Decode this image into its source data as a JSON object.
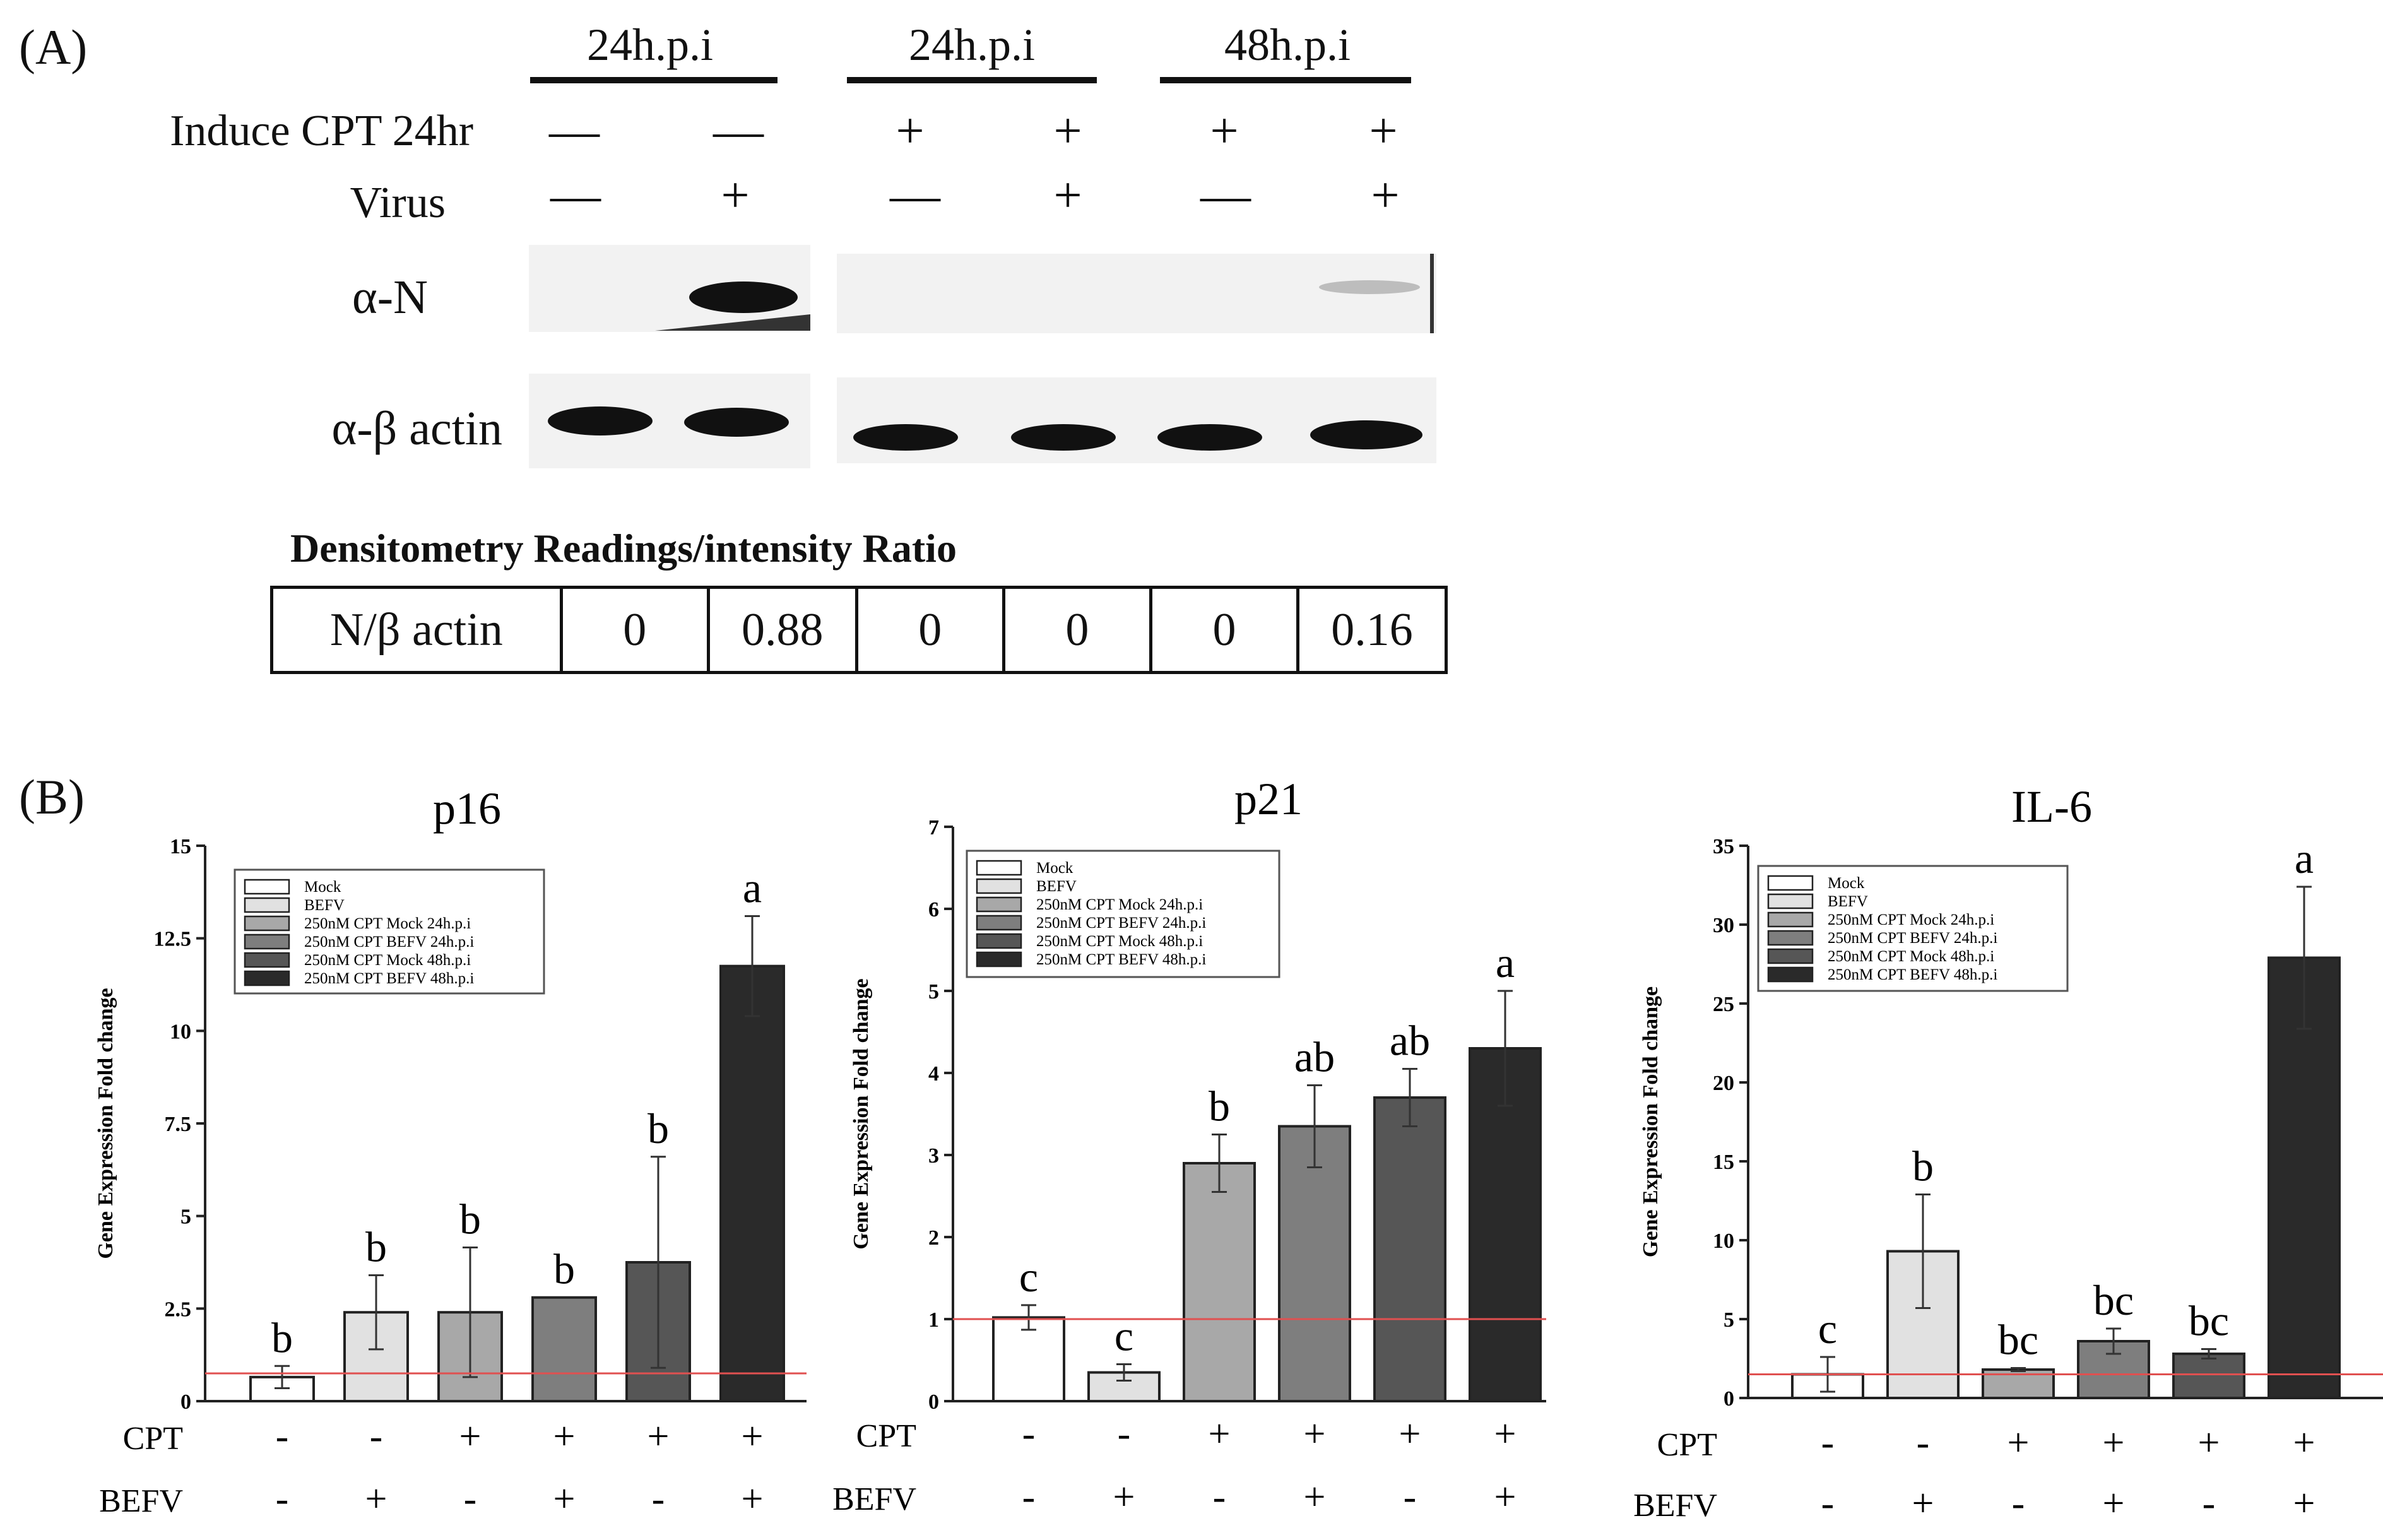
{
  "panelA": {
    "label": "(A)",
    "time_headers": [
      "24h.p.i",
      "24h.p.i",
      "48h.p.i"
    ],
    "row_labels": {
      "cpt": "Induce CPT 24hr",
      "virus": "Virus",
      "alphaN": "α-N",
      "actin": "α-β actin"
    },
    "cpt_symbols": [
      "—",
      "—",
      "+",
      "+",
      "+",
      "+"
    ],
    "virus_symbols": [
      "—",
      "+",
      "—",
      "+",
      "—",
      "+"
    ],
    "densitometry_title": "Densitometry Readings/intensity Ratio",
    "densitometry_row_label": "N/β actin",
    "densitometry_values": [
      "0",
      "0.88",
      "0",
      "0",
      "0",
      "0.16"
    ]
  },
  "panelB": {
    "label": "(B)",
    "legend": [
      "Mock",
      "BEFV",
      "250nM CPT Mock  24h.p.i",
      "250nM CPT BEFV 24h.p.i",
      "250nM CPT Mock  48h.p.i",
      "250nM CPT BEFV 48h.p.i"
    ],
    "bar_colors": [
      "#ffffff",
      "#e1e1e1",
      "#a8a8a8",
      "#7e7e7e",
      "#565656",
      "#2a2a2a"
    ],
    "ref_line_color": "#e05050",
    "ylabel": "Gene Expression Fold change",
    "cpt_label": "CPT",
    "befv_label": "BEFV",
    "cpt_row": [
      "-",
      "-",
      "+",
      "+",
      "+",
      "+"
    ],
    "befv_row": [
      "-",
      "+",
      "-",
      "+",
      "-",
      "+"
    ]
  },
  "chart_data": [
    {
      "type": "bar",
      "title": "p16",
      "ylim": [
        0,
        15
      ],
      "yticks": [
        0,
        2.5,
        5,
        7.5,
        10,
        12.5,
        15
      ],
      "ytick_labels": [
        "0",
        "2.5",
        "5",
        "7.5",
        "10",
        "12.5",
        "15"
      ],
      "categories": [
        "Mock",
        "BEFV",
        "250nM CPT Mock 24h.p.i",
        "250nM CPT BEFV 24h.p.i",
        "250nM CPT Mock 48h.p.i",
        "250nM CPT BEFV 48h.p.i"
      ],
      "values": [
        0.65,
        2.4,
        2.4,
        2.8,
        3.75,
        11.75
      ],
      "errors": [
        0.3,
        1.0,
        1.75,
        0,
        2.85,
        1.35
      ],
      "sig_labels": [
        "b",
        "b",
        "b",
        "b",
        "b",
        "a"
      ],
      "reference_line": 0.75
    },
    {
      "type": "bar",
      "title": "p21",
      "ylim": [
        0,
        7
      ],
      "yticks": [
        0,
        1,
        2,
        3,
        4,
        5,
        6,
        7
      ],
      "ytick_labels": [
        "0",
        "1",
        "2",
        "3",
        "4",
        "5",
        "6",
        "7"
      ],
      "categories": [
        "Mock",
        "BEFV",
        "250nM CPT Mock 24h.p.i",
        "250nM CPT BEFV 24h.p.i",
        "250nM CPT Mock 48h.p.i",
        "250nM CPT BEFV 48h.p.i"
      ],
      "values": [
        1.02,
        0.35,
        2.9,
        3.35,
        3.7,
        4.3
      ],
      "errors": [
        0.15,
        0.1,
        0.35,
        0.5,
        0.35,
        0.7
      ],
      "sig_labels": [
        "c",
        "c",
        "b",
        "ab",
        "ab",
        "a"
      ],
      "reference_line": 1.0
    },
    {
      "type": "bar",
      "title": "IL-6",
      "ylim": [
        0,
        35
      ],
      "yticks": [
        0,
        5,
        10,
        15,
        20,
        25,
        30,
        35
      ],
      "ytick_labels": [
        "0",
        "5",
        "10",
        "15",
        "20",
        "25",
        "30",
        "35"
      ],
      "categories": [
        "Mock",
        "BEFV",
        "250nM CPT Mock 24h.p.i",
        "250nM CPT BEFV 24h.p.i",
        "250nM CPT Mock 48h.p.i",
        "250nM CPT BEFV 48h.p.i"
      ],
      "values": [
        1.5,
        9.3,
        1.8,
        3.6,
        2.8,
        27.9
      ],
      "errors": [
        1.1,
        3.6,
        0.1,
        0.8,
        0.3,
        4.5
      ],
      "sig_labels": [
        "c",
        "b",
        "bc",
        "bc",
        "bc",
        "a"
      ],
      "reference_line": 1.5
    }
  ]
}
